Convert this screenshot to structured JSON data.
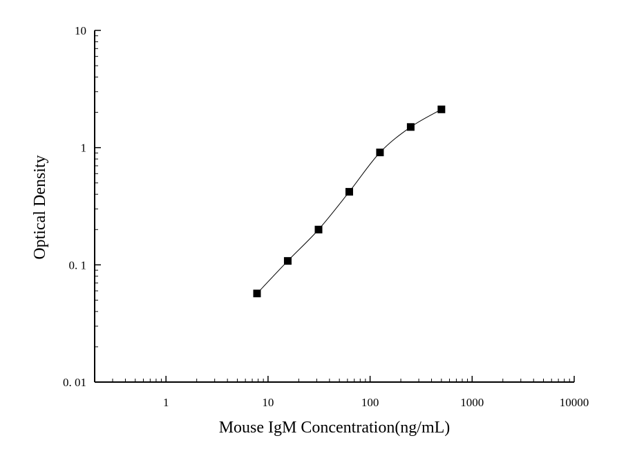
{
  "chart_data": {
    "type": "scatter",
    "xlabel": "Mouse IgM Concentration(ng/mL)",
    "ylabel": "Optical Density",
    "x_scale": "log",
    "y_scale": "log",
    "xlim": [
      0.2,
      10000
    ],
    "ylim": [
      0.01,
      10
    ],
    "x_ticks": [
      {
        "value": 1,
        "label": "1"
      },
      {
        "value": 10,
        "label": "10"
      },
      {
        "value": 100,
        "label": "100"
      },
      {
        "value": 1000,
        "label": "1000"
      },
      {
        "value": 10000,
        "label": "10000"
      }
    ],
    "y_ticks": [
      {
        "value": 0.01,
        "label": "0. 01"
      },
      {
        "value": 0.1,
        "label": "0. 1"
      },
      {
        "value": 1,
        "label": "1"
      },
      {
        "value": 10,
        "label": "10"
      }
    ],
    "grid": false,
    "legend": "none",
    "series": [
      {
        "x": [
          7.8,
          15.6,
          31.25,
          62.5,
          125,
          250,
          500
        ],
        "y": [
          0.057,
          0.108,
          0.2,
          0.42,
          0.91,
          1.5,
          2.12
        ],
        "marker": "square",
        "line": "smooth",
        "color": "#000000"
      }
    ]
  }
}
